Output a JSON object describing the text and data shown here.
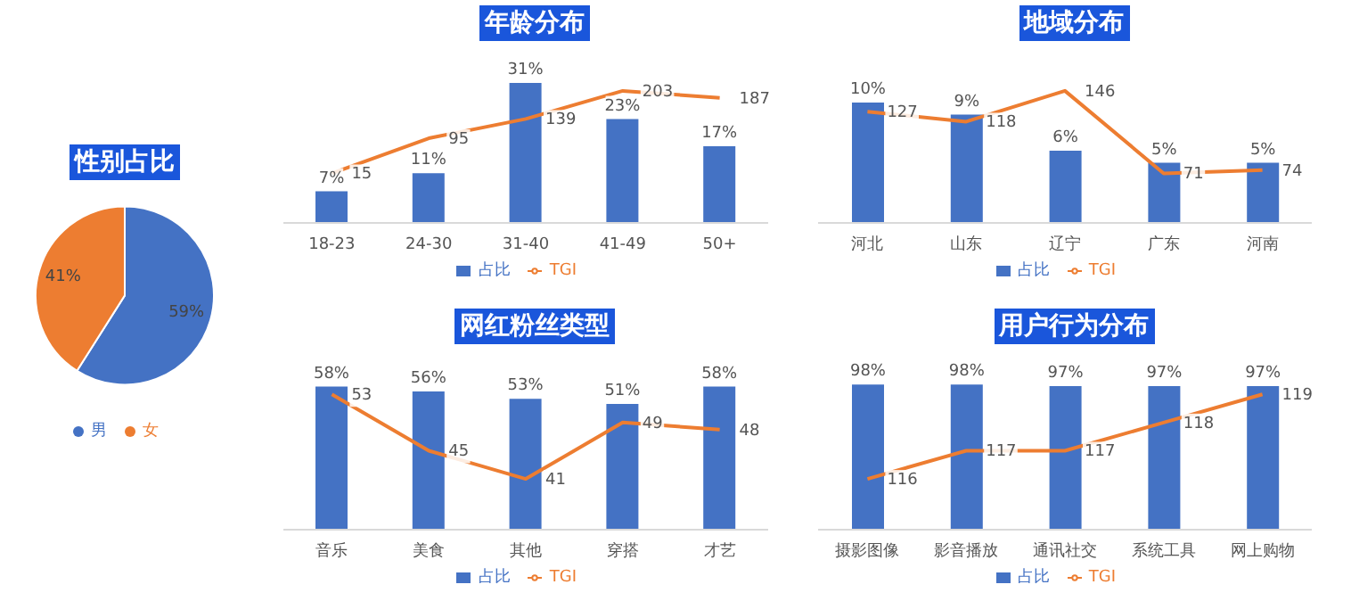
{
  "chart_data": [
    {
      "type": "pie",
      "title": "性别占比",
      "categories": [
        "男",
        "女"
      ],
      "values": [
        59,
        41
      ],
      "colors": [
        "#4472c4",
        "#ed7d31"
      ],
      "value_labels": [
        "59%",
        "41%"
      ],
      "legend": "bottom"
    },
    {
      "type": "bar",
      "title": "年龄分布",
      "categories": [
        "18-23",
        "24-30",
        "31-40",
        "41-49",
        "50+"
      ],
      "series": [
        {
          "name": "占比",
          "type": "bar",
          "color": "#4472c4",
          "values": [
            7,
            11,
            31,
            23,
            17
          ],
          "value_labels": [
            "7%",
            "11%",
            "31%",
            "23%",
            "17%"
          ]
        },
        {
          "name": "TGI",
          "type": "line",
          "axis": "y2",
          "color": "#ed7d31",
          "values": [
            15,
            95,
            139,
            203,
            187
          ],
          "value_labels": [
            "15",
            "95",
            "139",
            "203",
            "187"
          ]
        }
      ],
      "tick_labels": "x",
      "legend": "bottom"
    },
    {
      "type": "bar",
      "title": "地域分布",
      "categories": [
        "河北",
        "山东",
        "辽宁",
        "广东",
        "河南"
      ],
      "series": [
        {
          "name": "占比",
          "type": "bar",
          "color": "#4472c4",
          "values": [
            10,
            9,
            6,
            5,
            5
          ],
          "value_labels": [
            "10%",
            "9%",
            "6%",
            "5%",
            "5%"
          ]
        },
        {
          "name": "TGI",
          "type": "line",
          "axis": "y2",
          "color": "#ed7d31",
          "values": [
            127,
            118,
            146,
            71,
            74
          ],
          "value_labels": [
            "127",
            "118",
            "146",
            "71",
            "74"
          ]
        }
      ],
      "tick_labels": "x",
      "legend": "bottom"
    },
    {
      "type": "bar",
      "title": "网红粉丝类型",
      "categories": [
        "音乐",
        "美食",
        "其他",
        "穿搭",
        "才艺"
      ],
      "series": [
        {
          "name": "占比",
          "type": "bar",
          "color": "#4472c4",
          "values": [
            58,
            56,
            53,
            51,
            58
          ],
          "value_labels": [
            "58%",
            "56%",
            "53%",
            "51%",
            "58%"
          ]
        },
        {
          "name": "TGI",
          "type": "line",
          "axis": "y2",
          "color": "#ed7d31",
          "values": [
            53,
            45,
            41,
            49,
            48
          ],
          "value_labels": [
            "53",
            "45",
            "41",
            "49",
            "48"
          ]
        }
      ],
      "tick_labels": "x",
      "legend": "bottom"
    },
    {
      "type": "bar",
      "title": "用户行为分布",
      "categories": [
        "摄影图像",
        "影音播放",
        "通讯社交",
        "系统工具",
        "网上购物"
      ],
      "series": [
        {
          "name": "占比",
          "type": "bar",
          "color": "#4472c4",
          "values": [
            98,
            98,
            97,
            97,
            97
          ],
          "value_labels": [
            "98%",
            "98%",
            "97%",
            "97%",
            "97%"
          ]
        },
        {
          "name": "TGI",
          "type": "line",
          "axis": "y2",
          "color": "#ed7d31",
          "values": [
            116,
            117,
            117,
            118,
            119
          ],
          "value_labels": [
            "116",
            "117",
            "117",
            "118",
            "119"
          ]
        }
      ],
      "tick_labels": "x",
      "legend": "bottom"
    }
  ]
}
